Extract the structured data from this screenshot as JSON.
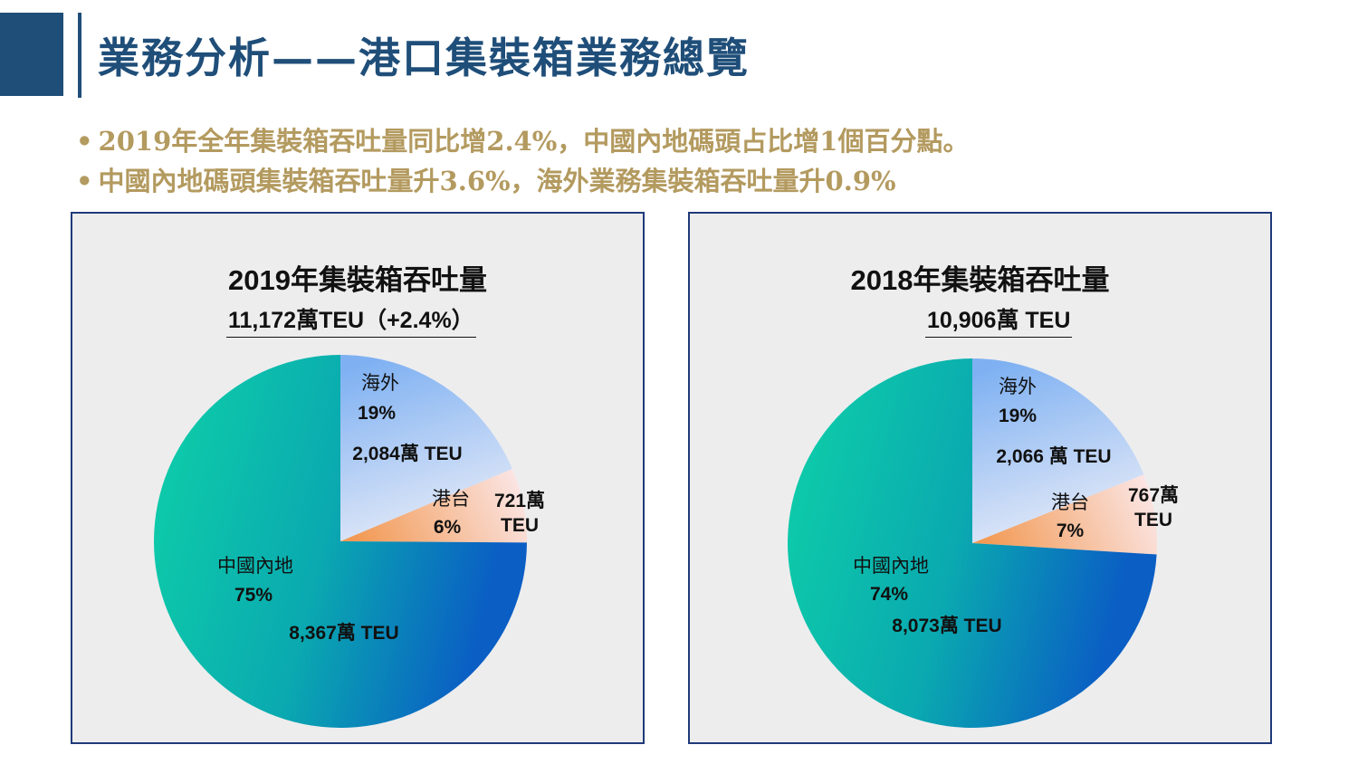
{
  "page": {
    "title": "業務分析——港口集裝箱業務總覽",
    "bullets": [
      "2019年全年集裝箱吞吐量同比增2.4%，中國內地碼頭占比增1個百分點。",
      "中國內地碼頭集裝箱吞吐量升3.6%，海外業務集裝箱吞吐量升0.9%"
    ],
    "bullet_marker": "•"
  },
  "chart_data": [
    {
      "type": "pie",
      "title": "2019年集裝箱吞吐量",
      "subtitle": "11,172萬TEU（+2.4%）",
      "slices": [
        {
          "name": "海外",
          "percent": 19,
          "value": 2084,
          "value_label": "2,084萬 TEU",
          "percent_label": "19%",
          "color": "#8fbaf0"
        },
        {
          "name": "港台",
          "percent": 6,
          "value": 721,
          "value_label": "721萬 TEU",
          "percent_label": "6%",
          "color": "#f5b07a"
        },
        {
          "name": "中國內地",
          "percent": 75,
          "value": 8367,
          "value_label": "8,367萬 TEU",
          "percent_label": "75%",
          "color": "#12b5a6"
        }
      ]
    },
    {
      "type": "pie",
      "title": "2018年集裝箱吞吐量",
      "subtitle": "10,906萬 TEU",
      "slices": [
        {
          "name": "海外",
          "percent": 19,
          "value": 2066,
          "value_label": "2,066 萬 TEU",
          "percent_label": "19%",
          "color": "#8fbaf0"
        },
        {
          "name": "港台",
          "percent": 7,
          "value": 767,
          "value_label": "767萬 TEU",
          "percent_label": "7%",
          "color": "#f5b07a"
        },
        {
          "name": "中國內地",
          "percent": 74,
          "value": 8073,
          "value_label": "8,073萬 TEU",
          "percent_label": "74%",
          "color": "#12b5a6"
        }
      ]
    }
  ]
}
